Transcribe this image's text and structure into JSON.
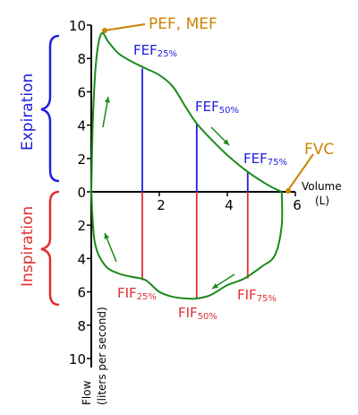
{
  "chart_data": {
    "type": "line",
    "xlabel_line1": "Volume",
    "xlabel_line2": "(L)",
    "ylabel_line1": "Flow",
    "ylabel_line2": "(liters per second)",
    "xlim": [
      0,
      6
    ],
    "ylim": [
      -10,
      10
    ],
    "x_ticks": [
      {
        "value": 2,
        "label": "2"
      },
      {
        "value": 4,
        "label": "4"
      },
      {
        "value": 6,
        "label": "6"
      }
    ],
    "y_ticks": [
      {
        "value": 10,
        "label": "10"
      },
      {
        "value": 8,
        "label": "8"
      },
      {
        "value": 6,
        "label": "6"
      },
      {
        "value": 4,
        "label": "4"
      },
      {
        "value": 2,
        "label": "2"
      },
      {
        "value": 0,
        "label": "0"
      },
      {
        "value": -2,
        "label": "2"
      },
      {
        "value": -4,
        "label": "4"
      },
      {
        "value": -6,
        "label": "6"
      },
      {
        "value": -8,
        "label": "8"
      },
      {
        "value": -10,
        "label": "10"
      }
    ],
    "curve_color": "#1a8a1a",
    "expiration_curve": [
      {
        "v": 0.0,
        "f": 0.0
      },
      {
        "v": 0.05,
        "f": 4.5
      },
      {
        "v": 0.15,
        "f": 8.0
      },
      {
        "v": 0.3,
        "f": 9.5
      },
      {
        "v": 0.5,
        "f": 9.0
      },
      {
        "v": 0.8,
        "f": 8.3
      },
      {
        "v": 1.2,
        "f": 7.8
      },
      {
        "v": 1.6,
        "f": 7.4
      },
      {
        "v": 2.0,
        "f": 7.0
      },
      {
        "v": 2.4,
        "f": 6.3
      },
      {
        "v": 2.8,
        "f": 5.0
      },
      {
        "v": 3.1,
        "f": 4.1
      },
      {
        "v": 3.5,
        "f": 3.2
      },
      {
        "v": 4.0,
        "f": 2.2
      },
      {
        "v": 4.6,
        "f": 1.2
      },
      {
        "v": 5.2,
        "f": 0.4
      },
      {
        "v": 5.6,
        "f": 0.0
      }
    ],
    "inspiration_curve": [
      {
        "v": 0.0,
        "f": 0.0
      },
      {
        "v": 0.1,
        "f": -3.0
      },
      {
        "v": 0.4,
        "f": -4.4
      },
      {
        "v": 0.8,
        "f": -4.9
      },
      {
        "v": 1.2,
        "f": -5.1
      },
      {
        "v": 1.6,
        "f": -5.3
      },
      {
        "v": 2.0,
        "f": -6.0
      },
      {
        "v": 2.4,
        "f": -6.3
      },
      {
        "v": 2.8,
        "f": -6.4
      },
      {
        "v": 3.1,
        "f": -6.4
      },
      {
        "v": 3.5,
        "f": -6.2
      },
      {
        "v": 4.0,
        "f": -5.6
      },
      {
        "v": 4.5,
        "f": -5.2
      },
      {
        "v": 5.0,
        "f": -4.5
      },
      {
        "v": 5.4,
        "f": -3.8
      },
      {
        "v": 5.6,
        "f": -2.0
      },
      {
        "v": 5.6,
        "f": 0.0
      }
    ],
    "fef_lines": [
      {
        "v": 1.5,
        "f": 7.4,
        "label": "FEF",
        "sub": "25%",
        "color": "#2020e0"
      },
      {
        "v": 3.1,
        "f": 4.1,
        "label": "FEF",
        "sub": "50%",
        "color": "#2020e0"
      },
      {
        "v": 4.6,
        "f": 1.2,
        "label": "FEF",
        "sub": "75%",
        "color": "#2020e0"
      }
    ],
    "fif_lines": [
      {
        "v": 1.5,
        "f": -5.3,
        "label": "FIF",
        "sub": "25%",
        "color": "#e03030"
      },
      {
        "v": 3.1,
        "f": -6.4,
        "label": "FIF",
        "sub": "50%",
        "color": "#e03030"
      },
      {
        "v": 4.6,
        "f": -5.2,
        "label": "FIF",
        "sub": "75%",
        "color": "#e03030"
      }
    ],
    "annotations": {
      "pef_mef": {
        "text": "PEF, MEF",
        "color": "#cc8400",
        "v": 0.3,
        "f": 9.5
      },
      "fvc": {
        "text": "FVC",
        "color": "#cc8400",
        "v": 5.6,
        "f": 0.0
      }
    },
    "expiration_label": {
      "text": "Expiration",
      "color": "#2020e0"
    },
    "inspiration_label": {
      "text": "Inspiration",
      "color": "#e03030"
    }
  }
}
